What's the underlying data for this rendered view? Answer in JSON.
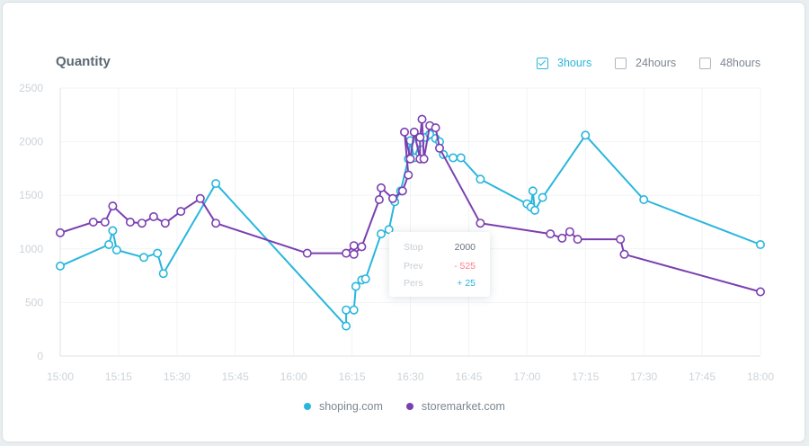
{
  "card": {
    "title": "Quantity",
    "ranges": [
      {
        "label": "3hours",
        "checked": true
      },
      {
        "label": "24hours",
        "checked": false
      },
      {
        "label": "48hours",
        "checked": false
      }
    ]
  },
  "tooltip": {
    "rows": [
      {
        "key": "Stop",
        "value": "2000",
        "tone": "plain"
      },
      {
        "key": "Prev",
        "value": "- 525",
        "tone": "neg"
      },
      {
        "key": "Pers",
        "value": "+ 25",
        "tone": "pos"
      }
    ]
  },
  "chart_data": {
    "type": "line",
    "x_ticks": [
      "15:00",
      "15:15",
      "15:30",
      "15:45",
      "16:00",
      "16:15",
      "16:30",
      "16:45",
      "17:00",
      "17:15",
      "17:30",
      "17:45",
      "18:00"
    ],
    "y_ticks": [
      0,
      500,
      1000,
      1500,
      2000,
      2500
    ],
    "ylim": [
      0,
      2500
    ],
    "xlim_minutes": [
      0,
      180
    ],
    "legend_position": "bottom",
    "grid": true,
    "series": [
      {
        "name": "shoping.com",
        "color": "#29b6dd",
        "points": [
          [
            0,
            840
          ],
          [
            12.5,
            1040
          ],
          [
            13.5,
            1170
          ],
          [
            14.5,
            990
          ],
          [
            21.5,
            920
          ],
          [
            25,
            960
          ],
          [
            26.5,
            770
          ],
          [
            40,
            1610
          ],
          [
            73.5,
            280
          ],
          [
            73.5,
            430
          ],
          [
            75.5,
            430
          ],
          [
            76,
            650
          ],
          [
            77.5,
            710
          ],
          [
            78.5,
            720
          ],
          [
            82.5,
            1140
          ],
          [
            84.5,
            1180
          ],
          [
            86,
            1440
          ],
          [
            87.5,
            1540
          ],
          [
            89.5,
            1840
          ],
          [
            90,
            2010
          ],
          [
            91,
            1850
          ],
          [
            92.5,
            1990
          ],
          [
            94,
            2040
          ],
          [
            95,
            2070
          ],
          [
            96.5,
            2030
          ],
          [
            97.5,
            2000
          ],
          [
            98.5,
            1880
          ],
          [
            101,
            1850
          ],
          [
            103,
            1850
          ],
          [
            108,
            1650
          ],
          [
            120,
            1420
          ],
          [
            121,
            1390
          ],
          [
            121.5,
            1540
          ],
          [
            122,
            1360
          ],
          [
            124,
            1480
          ],
          [
            135,
            2060
          ],
          [
            150,
            1460
          ],
          [
            180,
            1040
          ]
        ]
      },
      {
        "name": "storemarket.com",
        "color": "#7b3fb0",
        "points": [
          [
            0,
            1150
          ],
          [
            8.5,
            1250
          ],
          [
            11.5,
            1250
          ],
          [
            13.5,
            1400
          ],
          [
            18,
            1250
          ],
          [
            21,
            1240
          ],
          [
            24,
            1300
          ],
          [
            27,
            1240
          ],
          [
            31,
            1350
          ],
          [
            36,
            1470
          ],
          [
            40,
            1240
          ],
          [
            63.5,
            960
          ],
          [
            73.5,
            960
          ],
          [
            75.5,
            1030
          ],
          [
            75.5,
            950
          ],
          [
            77.5,
            1020
          ],
          [
            82,
            1460
          ],
          [
            82.5,
            1570
          ],
          [
            85.5,
            1470
          ],
          [
            88,
            1540
          ],
          [
            89.5,
            1690
          ],
          [
            88.5,
            2090
          ],
          [
            90,
            1840
          ],
          [
            91,
            2090
          ],
          [
            92.5,
            1840
          ],
          [
            92.5,
            2040
          ],
          [
            93,
            2210
          ],
          [
            93.5,
            1840
          ],
          [
            95,
            2150
          ],
          [
            96.5,
            2130
          ],
          [
            97.5,
            1940
          ],
          [
            108,
            1240
          ],
          [
            126,
            1140
          ],
          [
            129,
            1100
          ],
          [
            131,
            1160
          ],
          [
            133,
            1090
          ],
          [
            144,
            1090
          ],
          [
            145,
            950
          ],
          [
            180,
            600
          ]
        ]
      }
    ]
  }
}
